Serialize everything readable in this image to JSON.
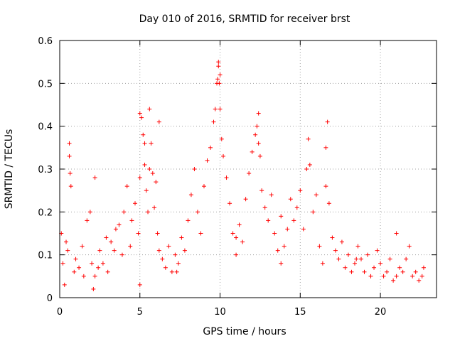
{
  "chart_data": {
    "type": "scatter",
    "title": "Day 010 of 2016, SRMTID for receiver brst",
    "xlabel": "GPS time / hours",
    "ylabel": "SRMTID / TECUs",
    "xlim": [
      0,
      23.5
    ],
    "ylim": [
      0,
      0.6
    ],
    "xticks": [
      0,
      5,
      10,
      15,
      20
    ],
    "xtick_labels": [
      "0",
      "5",
      "10",
      "15",
      "20"
    ],
    "yticks": [
      0,
      0.1,
      0.2,
      0.3,
      0.4,
      0.5,
      0.6
    ],
    "ytick_labels": [
      "0",
      "0.1",
      "0.2",
      "0.3",
      "0.4",
      "0.5",
      "0.6"
    ],
    "grid": true,
    "marker": "+",
    "color": "#ff0000",
    "series": [
      {
        "name": "SRMTID",
        "x": [
          0.1,
          0.2,
          0.3,
          0.5,
          0.6,
          0.7,
          0.9,
          1.0,
          1.2,
          1.4,
          1.5,
          1.7,
          1.9,
          2.0,
          2.1,
          2.2,
          2.4,
          2.5,
          2.7,
          2.9,
          3.0,
          3.2,
          3.4,
          3.5,
          3.7,
          3.9,
          4.0,
          4.2,
          4.4,
          4.5,
          4.7,
          4.9,
          5.0,
          5.1,
          5.2,
          5.3,
          5.4,
          5.5,
          5.6,
          5.7,
          5.8,
          5.9,
          6.0,
          6.1,
          6.2,
          6.4,
          6.6,
          6.8,
          7.0,
          7.2,
          7.4,
          7.6,
          7.8,
          8.0,
          8.2,
          8.4,
          8.6,
          8.8,
          9.0,
          9.2,
          9.4,
          9.6,
          9.7,
          9.8,
          9.9,
          10.0,
          10.1,
          10.2,
          10.4,
          10.6,
          10.8,
          11.0,
          11.2,
          11.4,
          11.6,
          11.8,
          12.0,
          12.2,
          12.3,
          12.4,
          12.5,
          12.6,
          12.8,
          13.0,
          13.2,
          13.4,
          13.6,
          13.8,
          14.0,
          14.2,
          14.4,
          14.6,
          14.8,
          15.0,
          15.2,
          15.4,
          15.5,
          15.6,
          15.8,
          16.0,
          16.2,
          16.4,
          16.6,
          16.7,
          16.8,
          17.0,
          17.2,
          17.4,
          17.6,
          17.8,
          18.0,
          18.2,
          18.4,
          18.6,
          18.8,
          19.0,
          19.2,
          19.4,
          19.6,
          19.8,
          20.0,
          20.2,
          20.4,
          20.6,
          20.8,
          21.0,
          21.2,
          21.4,
          21.6,
          21.8,
          22.0,
          22.2,
          22.4,
          22.6,
          22.7,
          0.6,
          0.65,
          5.0,
          5.3,
          5.6,
          6.2,
          9.85,
          9.9,
          9.95,
          10.0,
          12.4,
          16.6,
          0.4,
          2.2,
          5.0,
          7.3,
          11.0,
          13.8,
          18.5,
          21.0
        ],
        "y": [
          0.15,
          0.08,
          0.03,
          0.11,
          0.36,
          0.26,
          0.06,
          0.09,
          0.07,
          0.12,
          0.05,
          0.18,
          0.2,
          0.08,
          0.02,
          0.05,
          0.07,
          0.11,
          0.08,
          0.14,
          0.06,
          0.13,
          0.11,
          0.16,
          0.17,
          0.1,
          0.2,
          0.26,
          0.12,
          0.18,
          0.22,
          0.15,
          0.28,
          0.42,
          0.38,
          0.31,
          0.25,
          0.2,
          0.44,
          0.36,
          0.29,
          0.21,
          0.27,
          0.15,
          0.11,
          0.09,
          0.07,
          0.12,
          0.06,
          0.1,
          0.08,
          0.14,
          0.11,
          0.18,
          0.24,
          0.3,
          0.2,
          0.15,
          0.26,
          0.32,
          0.35,
          0.41,
          0.44,
          0.5,
          0.54,
          0.52,
          0.37,
          0.33,
          0.28,
          0.22,
          0.15,
          0.1,
          0.17,
          0.13,
          0.23,
          0.29,
          0.34,
          0.38,
          0.4,
          0.43,
          0.33,
          0.25,
          0.21,
          0.18,
          0.24,
          0.15,
          0.11,
          0.19,
          0.12,
          0.16,
          0.23,
          0.18,
          0.21,
          0.25,
          0.16,
          0.3,
          0.37,
          0.31,
          0.2,
          0.24,
          0.12,
          0.08,
          0.26,
          0.41,
          0.22,
          0.14,
          0.11,
          0.09,
          0.13,
          0.07,
          0.1,
          0.06,
          0.08,
          0.12,
          0.09,
          0.06,
          0.1,
          0.05,
          0.07,
          0.11,
          0.08,
          0.05,
          0.06,
          0.09,
          0.04,
          0.15,
          0.07,
          0.06,
          0.09,
          0.12,
          0.05,
          0.06,
          0.04,
          0.05,
          0.07,
          0.33,
          0.29,
          0.43,
          0.36,
          0.3,
          0.41,
          0.51,
          0.55,
          0.5,
          0.44,
          0.36,
          0.35,
          0.13,
          0.28,
          0.03,
          0.06,
          0.14,
          0.08,
          0.09,
          0.05
        ]
      }
    ]
  }
}
